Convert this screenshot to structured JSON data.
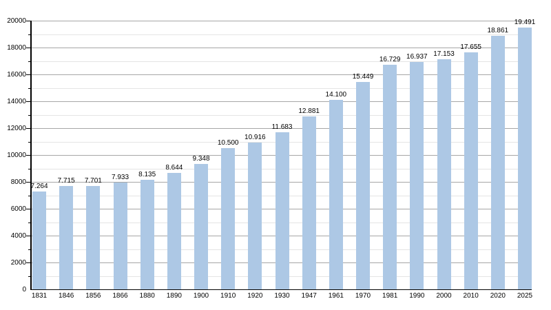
{
  "chart_data": {
    "type": "bar",
    "title": "",
    "xlabel": "",
    "ylabel": "",
    "categories": [
      "1831",
      "1846",
      "1856",
      "1866",
      "1880",
      "1890",
      "1900",
      "1910",
      "1920",
      "1930",
      "1947",
      "1961",
      "1970",
      "1981",
      "1990",
      "2000",
      "2010",
      "2020",
      "2025"
    ],
    "values": [
      7264,
      7715,
      7701,
      7933,
      8135,
      8644,
      9348,
      10500,
      10916,
      11683,
      12881,
      14100,
      15449,
      16729,
      16937,
      17153,
      17655,
      18861,
      19491
    ],
    "value_labels": [
      "7.264",
      "7.715",
      "7.701",
      "7.933",
      "8.135",
      "8.644",
      "9.348",
      "10.500",
      "10.916",
      "11.683",
      "12.881",
      "14.100",
      "15.449",
      "16.729",
      "16.937",
      "17.153",
      "17.655",
      "18.861",
      "19.491"
    ],
    "ylim": [
      0,
      20000
    ],
    "y_major_step": 2000,
    "y_minor_step": 1000,
    "y_tick_labels": [
      "0",
      "2000",
      "4000",
      "6000",
      "8000",
      "10000",
      "12000",
      "14000",
      "16000",
      "18000",
      "20000"
    ],
    "grid": true,
    "legend_position": "none",
    "colors": {
      "bar": "#adc8e5",
      "major_grid": "#a6a6a6",
      "minor_grid": "#e4e4e4",
      "axis": "#000000",
      "text": "#000000"
    }
  }
}
